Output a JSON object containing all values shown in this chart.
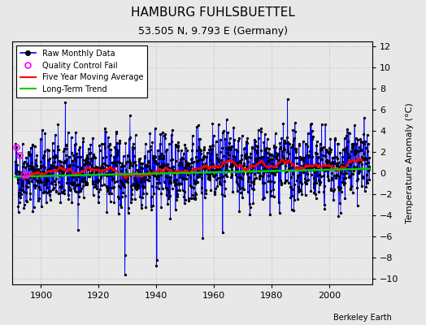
{
  "title": "HAMBURG FUHLSBUETTEL",
  "subtitle": "53.505 N, 9.793 E (Germany)",
  "ylabel": "Temperature Anomaly (°C)",
  "credit": "Berkeley Earth",
  "year_start": 1891,
  "year_end": 2013,
  "ylim": [
    -10.5,
    12.5
  ],
  "yticks": [
    -10,
    -8,
    -6,
    -4,
    -2,
    0,
    2,
    4,
    6,
    8,
    10,
    12
  ],
  "xticks": [
    1900,
    1920,
    1940,
    1960,
    1980,
    2000
  ],
  "bg_color": "#e8e8e8",
  "plot_bg_color": "#e8e8e8",
  "raw_color": "#0000ff",
  "ma_color": "#ff0000",
  "trend_color": "#00cc00",
  "qc_color": "#ff00ff",
  "seed": 42
}
